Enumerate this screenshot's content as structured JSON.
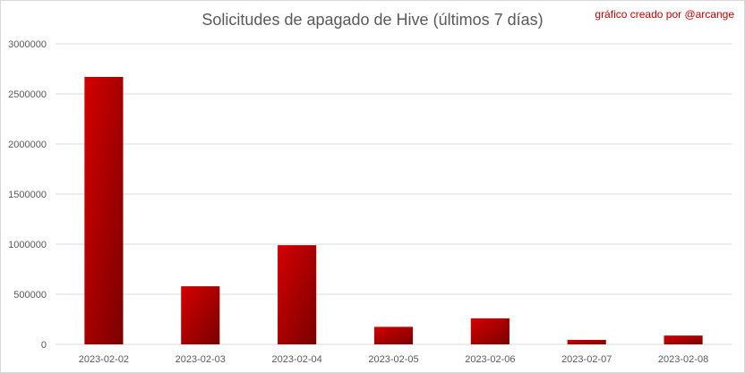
{
  "credit": "gráfico creado por @arcange",
  "colors": {
    "bar_light": "#d40000",
    "bar_dark": "#7a0000",
    "grid": "#d9d9d9",
    "text": "#595959",
    "credit": "#c00000"
  },
  "chart_data": {
    "type": "bar",
    "title": "Solicitudes de apagado de Hive (últimos 7 días)",
    "xlabel": "",
    "ylabel": "",
    "categories": [
      "2023-02-02",
      "2023-02-03",
      "2023-02-04",
      "2023-02-05",
      "2023-02-06",
      "2023-02-07",
      "2023-02-08"
    ],
    "values": [
      2670000,
      580000,
      990000,
      175000,
      260000,
      45000,
      88000
    ],
    "ylim": [
      0,
      3000000
    ],
    "yticks": [
      0,
      500000,
      1000000,
      1500000,
      2000000,
      2500000,
      3000000
    ],
    "grid": true,
    "legend": "none"
  }
}
